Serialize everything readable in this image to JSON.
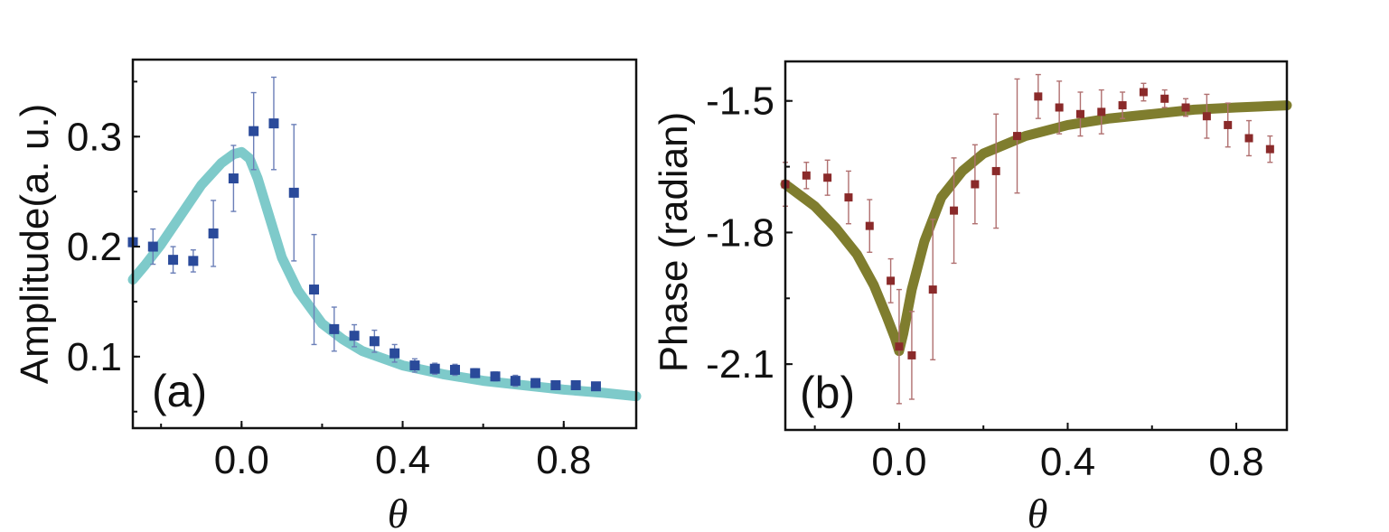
{
  "chart_data": [
    {
      "type": "scatter",
      "panel_label": "(a)",
      "xlabel": "θ",
      "ylabel": "Amplitude(a. u.)",
      "xlim": [
        -0.27,
        0.98
      ],
      "ylim": [
        0.035,
        0.37
      ],
      "xticks": [
        0.0,
        0.4,
        0.8
      ],
      "xtick_labels": [
        "0.0",
        "0.4",
        "0.8"
      ],
      "yticks": [
        0.1,
        0.2,
        0.3
      ],
      "ytick_labels": [
        "0.1",
        "0.2",
        "0.3"
      ],
      "marker_color": "#2a4a9a",
      "errorbar_color": "#6b7fb8",
      "fit_color": "#7ecaca",
      "series": [
        {
          "name": "data",
          "x": [
            -0.27,
            -0.22,
            -0.17,
            -0.12,
            -0.07,
            -0.02,
            0.03,
            0.08,
            0.13,
            0.18,
            0.23,
            0.28,
            0.33,
            0.38,
            0.43,
            0.48,
            0.53,
            0.58,
            0.63,
            0.68,
            0.73,
            0.78,
            0.83,
            0.88
          ],
          "y": [
            0.204,
            0.2,
            0.188,
            0.187,
            0.212,
            0.262,
            0.305,
            0.312,
            0.249,
            0.161,
            0.125,
            0.119,
            0.114,
            0.103,
            0.092,
            0.089,
            0.088,
            0.085,
            0.082,
            0.078,
            0.076,
            0.074,
            0.074,
            0.073
          ],
          "err": [
            0.004,
            0.016,
            0.012,
            0.01,
            0.03,
            0.03,
            0.035,
            0.042,
            0.062,
            0.05,
            0.02,
            0.01,
            0.01,
            0.008,
            0.006,
            0.005,
            0.005,
            0.004,
            0.004,
            0.005,
            0.004,
            0.003,
            0.003,
            0.003
          ]
        },
        {
          "name": "fit",
          "x": [
            -0.27,
            -0.24,
            -0.2,
            -0.15,
            -0.1,
            -0.05,
            -0.02,
            0.0,
            0.02,
            0.04,
            0.07,
            0.1,
            0.14,
            0.2,
            0.25,
            0.3,
            0.4,
            0.5,
            0.6,
            0.7,
            0.8,
            0.9,
            0.98
          ],
          "y": [
            0.17,
            0.183,
            0.202,
            0.229,
            0.256,
            0.276,
            0.284,
            0.286,
            0.28,
            0.262,
            0.226,
            0.19,
            0.16,
            0.13,
            0.116,
            0.105,
            0.092,
            0.084,
            0.078,
            0.074,
            0.07,
            0.067,
            0.064
          ]
        }
      ]
    },
    {
      "type": "scatter",
      "panel_label": "(b)",
      "xlabel": "θ",
      "ylabel": "Phase (radian)",
      "xlim": [
        -0.27,
        0.92
      ],
      "ylim": [
        -2.25,
        -1.41
      ],
      "xticks": [
        0.0,
        0.4,
        0.8
      ],
      "xtick_labels": [
        "0.0",
        "0.4",
        "0.8"
      ],
      "yticks": [
        -2.1,
        -1.8,
        -1.5
      ],
      "ytick_labels": [
        "-2.1",
        "-1.8",
        "-1.5"
      ],
      "marker_color": "#8a2a2a",
      "errorbar_color": "#b07070",
      "fit_color": "#7f7d2e",
      "series": [
        {
          "name": "data",
          "x": [
            -0.27,
            -0.22,
            -0.17,
            -0.12,
            -0.07,
            -0.02,
            0.0,
            0.03,
            0.08,
            0.13,
            0.18,
            0.23,
            0.28,
            0.33,
            0.38,
            0.43,
            0.48,
            0.53,
            0.58,
            0.63,
            0.68,
            0.73,
            0.78,
            0.83,
            0.88
          ],
          "y": [
            -1.69,
            -1.67,
            -1.675,
            -1.72,
            -1.785,
            -1.91,
            -2.06,
            -2.08,
            -1.93,
            -1.75,
            -1.69,
            -1.66,
            -1.58,
            -1.49,
            -1.515,
            -1.53,
            -1.525,
            -1.51,
            -1.48,
            -1.495,
            -1.515,
            -1.535,
            -1.555,
            -1.585,
            -1.61
          ],
          "err": [
            0.05,
            0.03,
            0.04,
            0.06,
            0.06,
            0.05,
            0.13,
            0.1,
            0.16,
            0.12,
            0.09,
            0.13,
            0.13,
            0.05,
            0.06,
            0.05,
            0.05,
            0.03,
            0.02,
            0.02,
            0.02,
            0.05,
            0.05,
            0.04,
            0.03
          ]
        },
        {
          "name": "fit",
          "x": [
            -0.27,
            -0.2,
            -0.15,
            -0.1,
            -0.06,
            -0.03,
            -0.01,
            0.0,
            0.01,
            0.03,
            0.06,
            0.1,
            0.15,
            0.2,
            0.3,
            0.4,
            0.5,
            0.6,
            0.7,
            0.8,
            0.92
          ],
          "y": [
            -1.69,
            -1.74,
            -1.79,
            -1.85,
            -1.92,
            -1.99,
            -2.04,
            -2.07,
            -2.03,
            -1.93,
            -1.82,
            -1.72,
            -1.66,
            -1.62,
            -1.58,
            -1.555,
            -1.54,
            -1.53,
            -1.52,
            -1.515,
            -1.51
          ]
        }
      ]
    }
  ]
}
